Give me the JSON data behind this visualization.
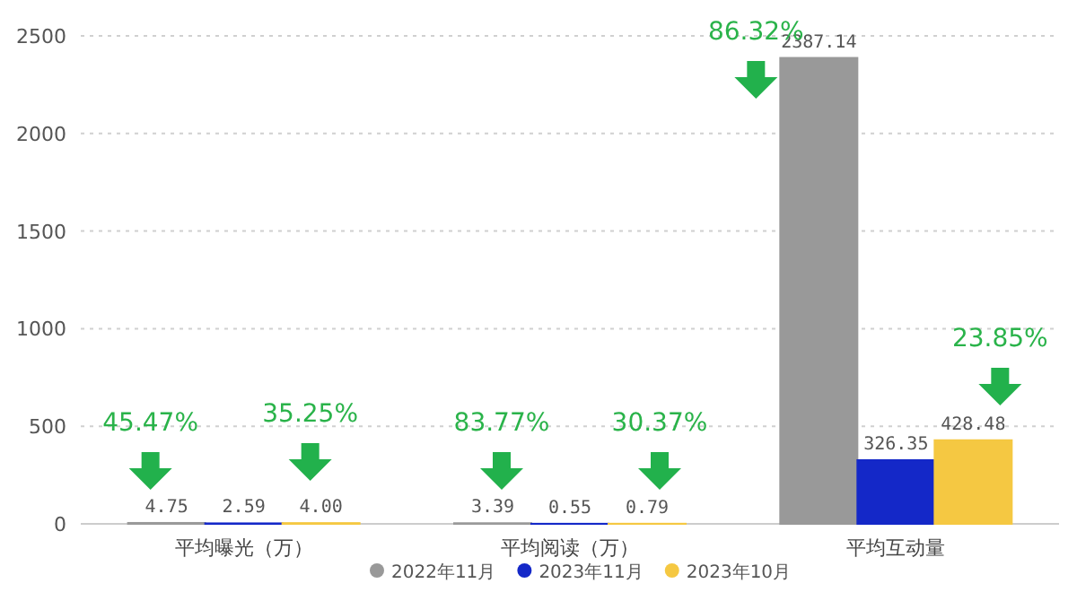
{
  "chart_data": {
    "type": "bar",
    "categories": [
      "平均曝光（万）",
      "平均阅读（万）",
      "平均互动量"
    ],
    "series": [
      {
        "name": "2022年11月",
        "color": "#999999",
        "values": [
          4.75,
          3.39,
          2387.14
        ],
        "value_labels": [
          "4.75",
          "3.39",
          "2387.14"
        ]
      },
      {
        "name": "2023年11月",
        "color": "#1428c8",
        "values": [
          2.59,
          0.55,
          326.35
        ],
        "value_labels": [
          "2.59",
          "0.55",
          "326.35"
        ]
      },
      {
        "name": "2023年10月",
        "color": "#f5c842",
        "values": [
          4.0,
          0.79,
          428.48
        ],
        "value_labels": [
          "4.00",
          "0.79",
          "428.48"
        ]
      }
    ],
    "ylim": [
      0,
      2500
    ],
    "yticks": [
      0,
      500,
      1000,
      1500,
      2000,
      2500
    ],
    "grid": "y",
    "legend": "bottom",
    "annotations": [
      "45.47%",
      "35.25%",
      "83.77%",
      "30.37%",
      "86.32%",
      "23.85%"
    ]
  }
}
